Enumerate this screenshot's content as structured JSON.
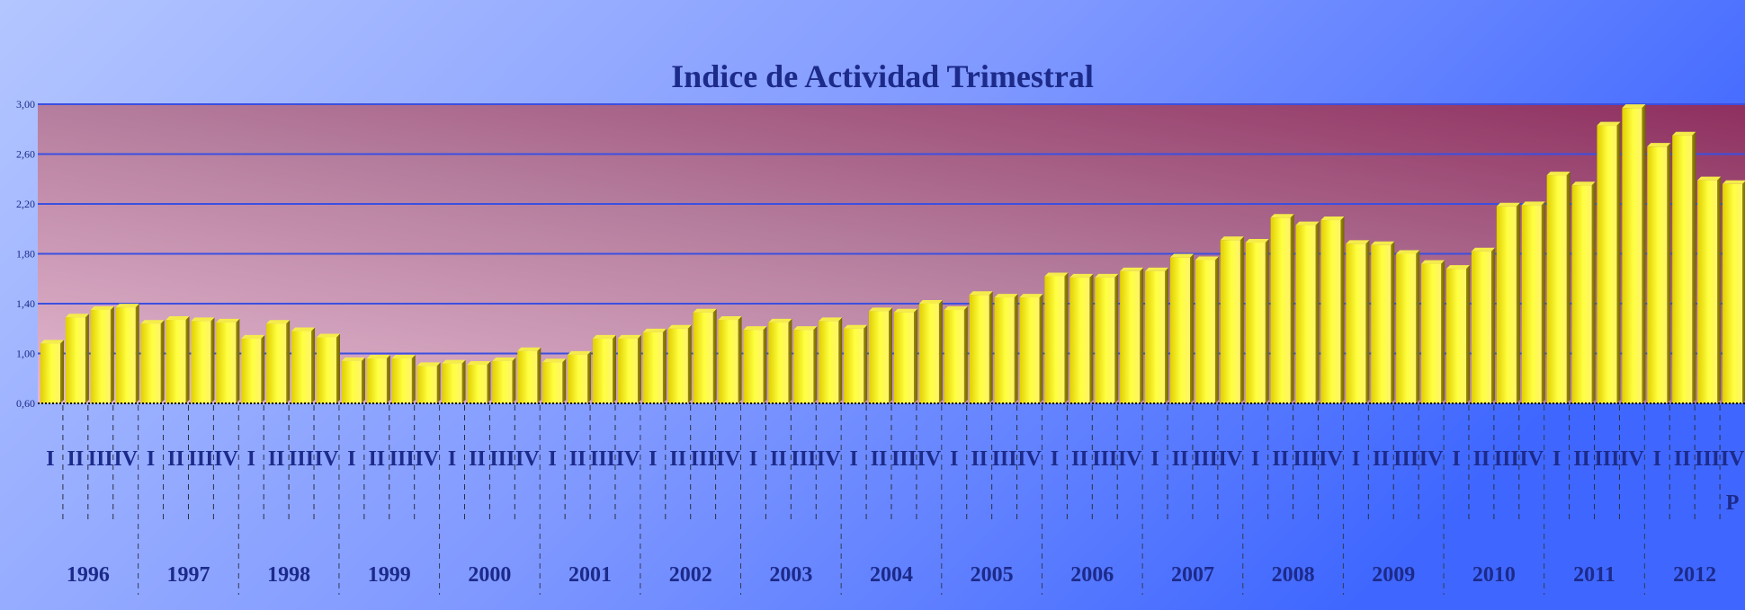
{
  "chart_data": {
    "type": "bar",
    "title": "Indice de Actividad Trimestral",
    "ylim": [
      0.6,
      3.0
    ],
    "yticks": [
      "0,60",
      "1,00",
      "1,40",
      "1,80",
      "2,20",
      "2,60",
      "3,00"
    ],
    "grid": true,
    "quarter_labels": [
      "I",
      "II",
      "III",
      "IV"
    ],
    "years": [
      "1996",
      "1997",
      "1998",
      "1999",
      "2000",
      "2001",
      "2002",
      "2003",
      "2004",
      "2005",
      "2006",
      "2007",
      "2008",
      "2009",
      "2010",
      "2011",
      "2012"
    ],
    "annotation": "P",
    "values": [
      1.08,
      1.29,
      1.35,
      1.37,
      1.24,
      1.27,
      1.26,
      1.25,
      1.12,
      1.24,
      1.18,
      1.13,
      0.94,
      0.96,
      0.96,
      0.9,
      0.92,
      0.91,
      0.94,
      1.02,
      0.93,
      0.99,
      1.12,
      1.12,
      1.17,
      1.2,
      1.33,
      1.27,
      1.19,
      1.25,
      1.19,
      1.26,
      1.2,
      1.34,
      1.33,
      1.4,
      1.35,
      1.47,
      1.45,
      1.45,
      1.62,
      1.61,
      1.61,
      1.66,
      1.66,
      1.77,
      1.75,
      1.91,
      1.89,
      2.09,
      2.03,
      2.07,
      1.88,
      1.87,
      1.8,
      1.72,
      1.68,
      1.82,
      2.18,
      2.19,
      2.43,
      2.35,
      2.83,
      2.97,
      2.66,
      2.75,
      2.39,
      2.36
    ]
  }
}
